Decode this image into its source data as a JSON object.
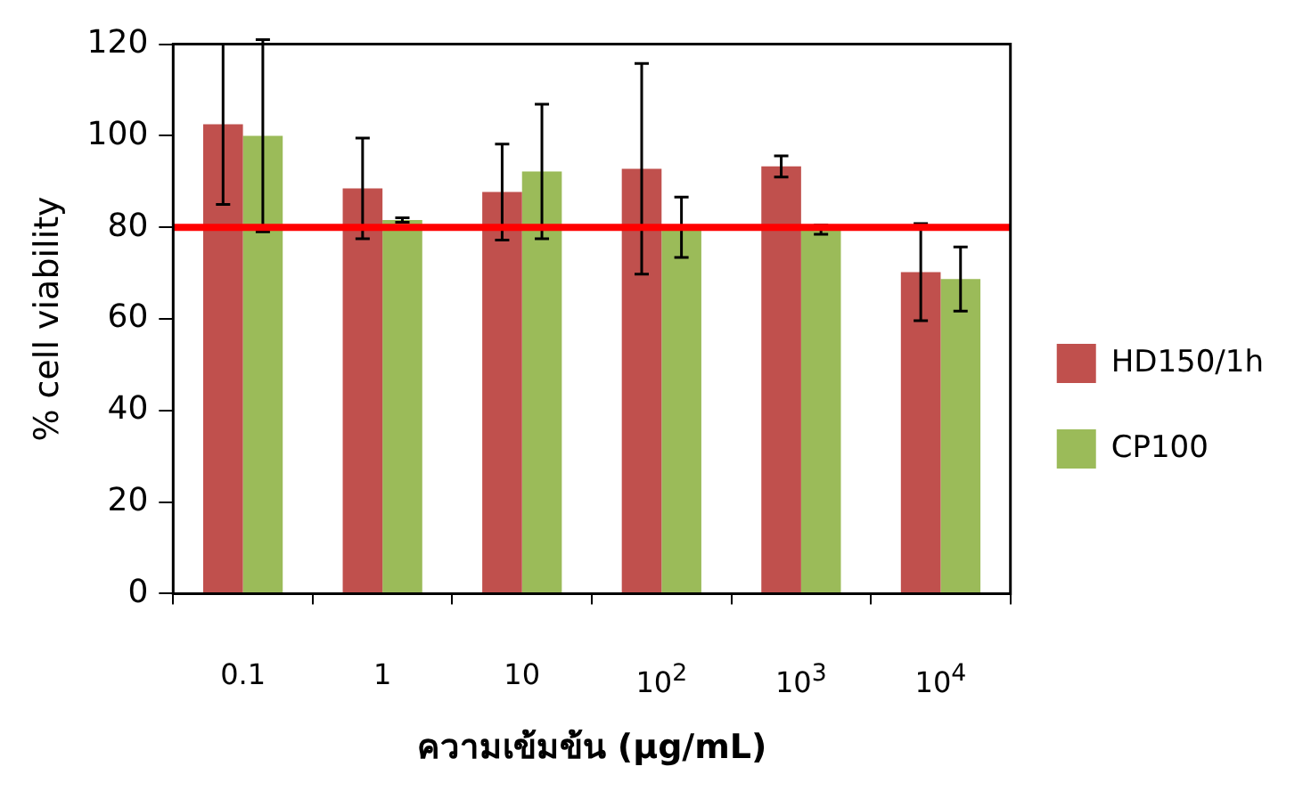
{
  "chart_data": {
    "type": "bar",
    "xlabel": "ความเข้มข้น (µg/mL)",
    "ylabel": "% cell viability",
    "categories": [
      "0.1",
      "1",
      "10",
      "10$^{2}$",
      "10$^{3}$",
      "10$^{4}$"
    ],
    "series": [
      {
        "name": "HD150/1h",
        "color": "#c0504d",
        "values": [
          102.5,
          88.5,
          87.7,
          92.8,
          93.3,
          70.2
        ],
        "errors": [
          17.5,
          11,
          10.5,
          23,
          2.3,
          10.6
        ]
      },
      {
        "name": "CP100",
        "color": "#9bbb59",
        "values": [
          100,
          81.6,
          92.2,
          80,
          79.5,
          68.7
        ],
        "errors": [
          21,
          0.5,
          14.7,
          6.6,
          1,
          7
        ]
      }
    ],
    "ylim": [
      0,
      120
    ],
    "yticks": [
      0,
      20,
      40,
      60,
      80,
      100,
      120
    ],
    "grid": false,
    "legend": "right",
    "ref_lines": [
      {
        "axis": "y",
        "value": 80,
        "color": "#ff0000"
      }
    ]
  }
}
